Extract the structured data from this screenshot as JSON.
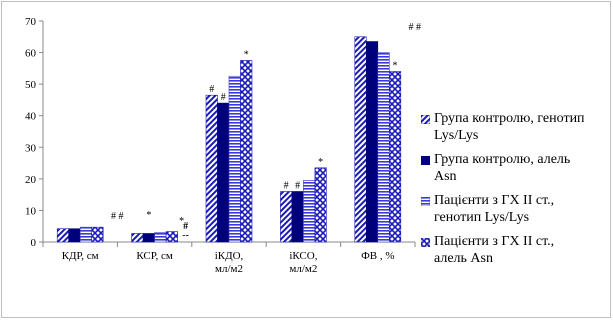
{
  "chart_data": {
    "type": "bar",
    "categories": [
      "КДР, см",
      "КСР, см",
      "іКДО, мл/м2",
      "іКСО, мл/м2",
      "ФВ , %"
    ],
    "category_lines": [
      [
        "КДР, см"
      ],
      [
        "КСР, см"
      ],
      [
        "іКДО,",
        "мл/м2"
      ],
      [
        "іКСО,",
        "мл/м2"
      ],
      [
        "ФВ , %"
      ]
    ],
    "ylim": [
      0,
      70
    ],
    "yticks": [
      0,
      10,
      20,
      30,
      40,
      50,
      60,
      70
    ],
    "grid": false,
    "legend_position": "right",
    "series": [
      {
        "name": "Група контролю, генотип Lys/Lys",
        "legend_lines": [
          "Група контролю, генотип",
          "Lys/Lys"
        ],
        "values": [
          4.2,
          2.7,
          46.5,
          16.0,
          65.0
        ],
        "color": "#1a1ab8",
        "pattern": "diag-light"
      },
      {
        "name": "Група контролю, алель Asn",
        "legend_lines": [
          "Група контролю, алель",
          "Asn"
        ],
        "values": [
          4.2,
          2.7,
          44.0,
          16.0,
          63.5
        ],
        "color": "#00007a",
        "pattern": "solid"
      },
      {
        "name": "Пацієнти з ГХ ІІ ст., генотип Lys/Lys",
        "legend_lines": [
          "Пацієнти з ГХ ІІ ст.,",
          "генотип Lys/Lys"
        ],
        "values": [
          4.7,
          3.0,
          52.5,
          19.5,
          60.0
        ],
        "color": "#3a3ad6",
        "pattern": "hlines"
      },
      {
        "name": "Пацієнти з ГХ ІІ ст., алель Asn",
        "legend_lines": [
          "Пацієнти з ГХ ІІ ст.,",
          "алель Asn"
        ],
        "values": [
          4.7,
          3.3,
          57.5,
          23.5,
          54.0
        ],
        "color": "#1a1ab8",
        "pattern": "zigzag"
      }
    ],
    "annotations": [
      {
        "category": 0,
        "series": 3,
        "text": "# #"
      },
      {
        "category": 1,
        "series": 1,
        "text": "*"
      },
      {
        "category": 1,
        "series": 3,
        "text": "*"
      },
      {
        "category": 1,
        "series": 3,
        "text": "#"
      },
      {
        "category": 1,
        "series": 3,
        "text": "--"
      },
      {
        "category": 2,
        "series": 0,
        "text": "#"
      },
      {
        "category": 2,
        "series": 1,
        "text": "#"
      },
      {
        "category": 2,
        "series": 3,
        "text": "*"
      },
      {
        "category": 3,
        "series": 0,
        "text": "#"
      },
      {
        "category": 3,
        "series": 1,
        "text": "#"
      },
      {
        "category": 3,
        "series": 3,
        "text": "*"
      },
      {
        "category": 4,
        "series": 3,
        "text": "*"
      },
      {
        "category": 4,
        "series": 3,
        "text": "# #"
      }
    ]
  }
}
